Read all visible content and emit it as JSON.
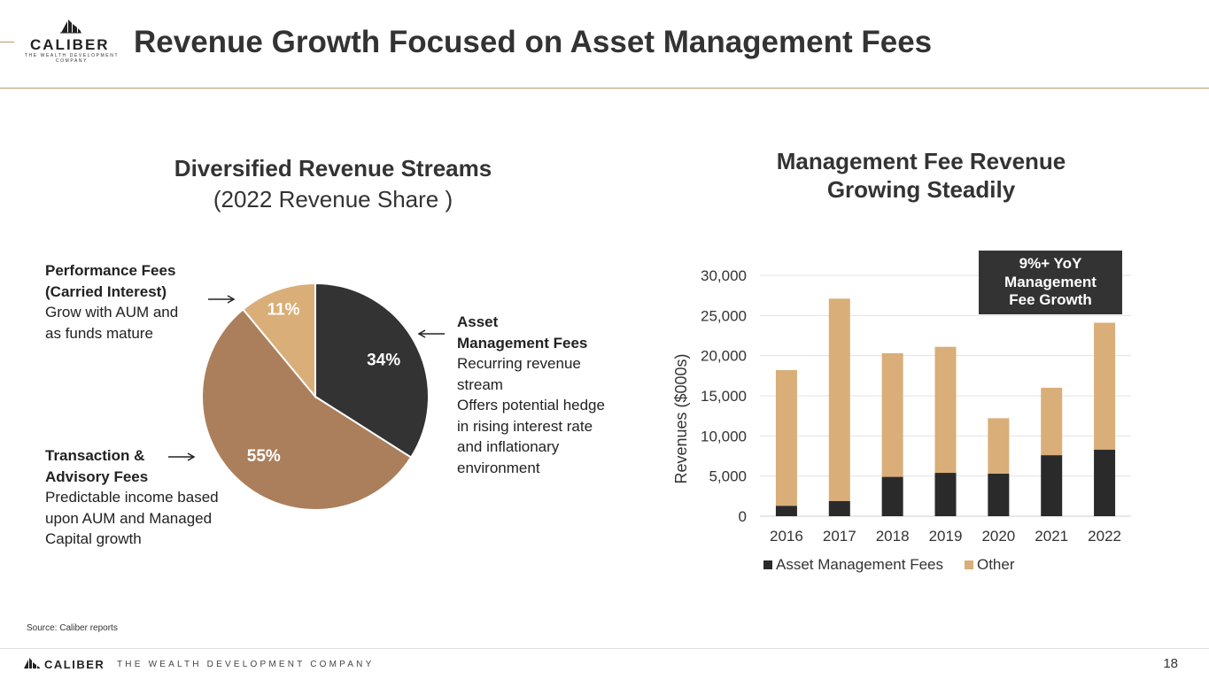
{
  "header": {
    "logo_word": "CALIBER",
    "logo_sub": "THE WEALTH DEVELOPMENT COMPANY",
    "title": "Revenue Growth Focused on Asset Management Fees"
  },
  "left_section": {
    "title": "Diversified Revenue Streams",
    "subtitle": "(2022 Revenue Share )"
  },
  "right_section": {
    "title_line1": "Management Fee Revenue",
    "title_line2": "Growing Steadily"
  },
  "annotations": {
    "performance": {
      "title1": "Performance Fees",
      "title2": "(Carried Interest)",
      "line1": "Grow with AUM and",
      "line2": "as funds mature"
    },
    "transaction": {
      "title1": "Transaction &",
      "title2": "Advisory Fees",
      "line1": "Predictable income based",
      "line2": "upon AUM and Managed",
      "line3": "Capital growth"
    },
    "asset": {
      "title1": "Asset",
      "title2": "Management Fees",
      "line1": "Recurring revenue",
      "line2": "stream",
      "line3": "Offers potential hedge",
      "line4": "in rising interest rate",
      "line5": "and inflationary",
      "line6": "environment"
    }
  },
  "yoy_box": {
    "line1": "9%+ YoY",
    "line2": "Management",
    "line3": "Fee Growth"
  },
  "colors": {
    "dark": "#333333",
    "brown": "#ab7f5b",
    "tan": "#d9ae79",
    "accent_line": "#b89a73"
  },
  "chart_data": [
    {
      "type": "pie",
      "title": "Diversified Revenue Streams",
      "subtitle": "(2022 Revenue Share )",
      "slices": [
        {
          "name": "Asset Management Fees",
          "value": 34,
          "label": "34%",
          "color": "#333333"
        },
        {
          "name": "Transaction & Advisory Fees",
          "value": 55,
          "label": "55%",
          "color": "#ab7f5b"
        },
        {
          "name": "Performance Fees (Carried Interest)",
          "value": 11,
          "label": "11%",
          "color": "#d9ae79"
        }
      ]
    },
    {
      "type": "bar",
      "stacked": true,
      "title": "Management Fee Revenue Growing Steadily",
      "ylabel": "Revenues ($000s)",
      "xlabel": "",
      "categories": [
        "2016",
        "2017",
        "2018",
        "2019",
        "2020",
        "2021",
        "2022"
      ],
      "series": [
        {
          "name": "Asset Management Fees",
          "color": "#2a2a2a",
          "values": [
            1300,
            1900,
            4900,
            5400,
            5300,
            7600,
            8300
          ]
        },
        {
          "name": "Other",
          "color": "#d9ae79",
          "values": [
            16900,
            25200,
            15400,
            15700,
            6900,
            8400,
            15800
          ]
        }
      ],
      "ylim": [
        0,
        30000
      ],
      "yticks": [
        0,
        5000,
        10000,
        15000,
        20000,
        25000,
        30000
      ],
      "ytick_labels": [
        "0",
        "5,000",
        "10,000",
        "15,000",
        "20,000",
        "25,000",
        "30,000"
      ],
      "grid": true,
      "legend": "bottom"
    }
  ],
  "footer": {
    "source": "Source: Caliber reports",
    "brand": "CALIBER",
    "tagline": "THE WEALTH DEVELOPMENT COMPANY",
    "page_number": "18"
  }
}
